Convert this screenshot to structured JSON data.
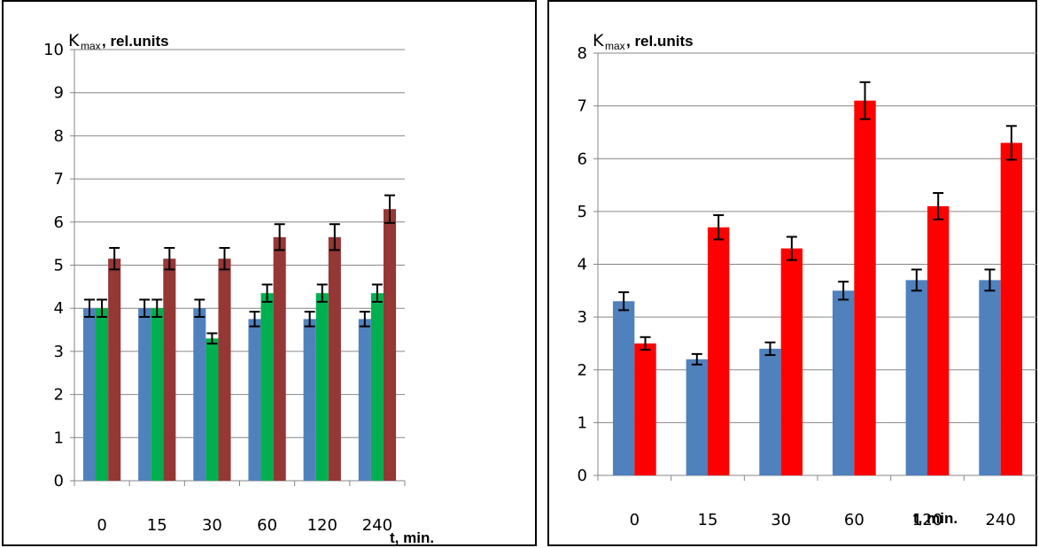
{
  "chart_data": [
    {
      "type": "bar",
      "ylabel_symbol": "K",
      "ylabel_subscript": "max",
      "ylabel_rest": ",  rel.units",
      "xlabel": "t, min.",
      "categories": [
        "0",
        "15",
        "30",
        "60",
        "120",
        "240"
      ],
      "ylim": [
        0,
        10
      ],
      "yticks": [
        "0",
        "1",
        "2",
        "3",
        "4",
        "5",
        "6",
        "7",
        "8",
        "9",
        "10"
      ],
      "grid": true,
      "legend": "none",
      "series": [
        {
          "color": "#4F81BD",
          "values": [
            4.0,
            4.0,
            4.0,
            3.75,
            3.75,
            3.75
          ],
          "errors": [
            0.2,
            0.2,
            0.2,
            0.17,
            0.17,
            0.17
          ]
        },
        {
          "color": "#00B050",
          "values": [
            4.0,
            4.0,
            3.3,
            4.35,
            4.35,
            4.35
          ],
          "errors": [
            0.2,
            0.2,
            0.12,
            0.2,
            0.2,
            0.2
          ]
        },
        {
          "color": "#953735",
          "values": [
            5.15,
            5.15,
            5.15,
            5.65,
            5.65,
            6.3
          ],
          "errors": [
            0.25,
            0.25,
            0.25,
            0.3,
            0.3,
            0.32
          ]
        }
      ]
    },
    {
      "type": "bar",
      "ylabel_symbol": "K",
      "ylabel_subscript": "max",
      "ylabel_rest": ",  rel.units",
      "xlabel": "t, min.",
      "categories": [
        "0",
        "15",
        "30",
        "60",
        "120",
        "240"
      ],
      "ylim": [
        0,
        8
      ],
      "yticks": [
        "0",
        "1",
        "2",
        "3",
        "4",
        "5",
        "6",
        "7",
        "8"
      ],
      "grid": true,
      "legend": "none",
      "series": [
        {
          "color": "#4F81BD",
          "values": [
            3.3,
            2.2,
            2.4,
            3.5,
            3.7,
            3.7
          ],
          "errors": [
            0.17,
            0.1,
            0.12,
            0.17,
            0.2,
            0.2
          ]
        },
        {
          "color": "#FF0000",
          "values": [
            2.5,
            4.7,
            4.3,
            7.1,
            5.1,
            6.3
          ],
          "errors": [
            0.12,
            0.23,
            0.22,
            0.35,
            0.25,
            0.32
          ]
        }
      ]
    }
  ]
}
